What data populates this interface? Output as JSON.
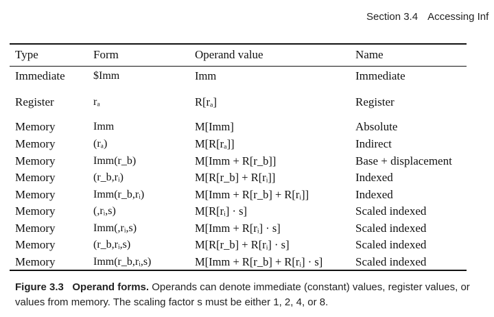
{
  "running_head": {
    "section": "Section 3.4",
    "title": "Accessing Inf"
  },
  "table": {
    "headers": [
      "Type",
      "Form",
      "Operand value",
      "Name"
    ],
    "rows": [
      {
        "type": "Immediate",
        "form": "$Imm",
        "value": "Imm",
        "name": "Immediate"
      },
      {
        "type": "Register",
        "form": "rₐ",
        "value": "R[rₐ]",
        "name": "Register"
      },
      {
        "type": "Memory",
        "form": "Imm",
        "value": "M[Imm]",
        "name": "Absolute"
      },
      {
        "type": "Memory",
        "form": "(rₐ)",
        "value": "M[R[rₐ]]",
        "name": "Indirect"
      },
      {
        "type": "Memory",
        "form": "Imm(r_b)",
        "value": "M[Imm + R[r_b]]",
        "name": "Base + displacement"
      },
      {
        "type": "Memory",
        "form": "(r_b,rᵢ)",
        "value": "M[R[r_b] + R[rᵢ]]",
        "name": "Indexed"
      },
      {
        "type": "Memory",
        "form": "Imm(r_b,rᵢ)",
        "value": "M[Imm + R[r_b] + R[rᵢ]]",
        "name": "Indexed"
      },
      {
        "type": "Memory",
        "form": "(,rᵢ,s)",
        "value": "M[R[rᵢ] · s]",
        "name": "Scaled indexed"
      },
      {
        "type": "Memory",
        "form": "Imm(,rᵢ,s)",
        "value": "M[Imm + R[rᵢ] · s]",
        "name": "Scaled indexed"
      },
      {
        "type": "Memory",
        "form": "(r_b,rᵢ,s)",
        "value": "M[R[r_b] + R[rᵢ] · s]",
        "name": "Scaled indexed"
      },
      {
        "type": "Memory",
        "form": "Imm(r_b,rᵢ,s)",
        "value": "M[Imm + R[r_b] + R[rᵢ] · s]",
        "name": "Scaled indexed"
      }
    ]
  },
  "caption": {
    "label": "Figure 3.3",
    "title": "Operand forms.",
    "text": "Operands can denote immediate (constant) values, register values, or values from memory. The scaling factor s must be either 1, 2, 4, or 8."
  }
}
